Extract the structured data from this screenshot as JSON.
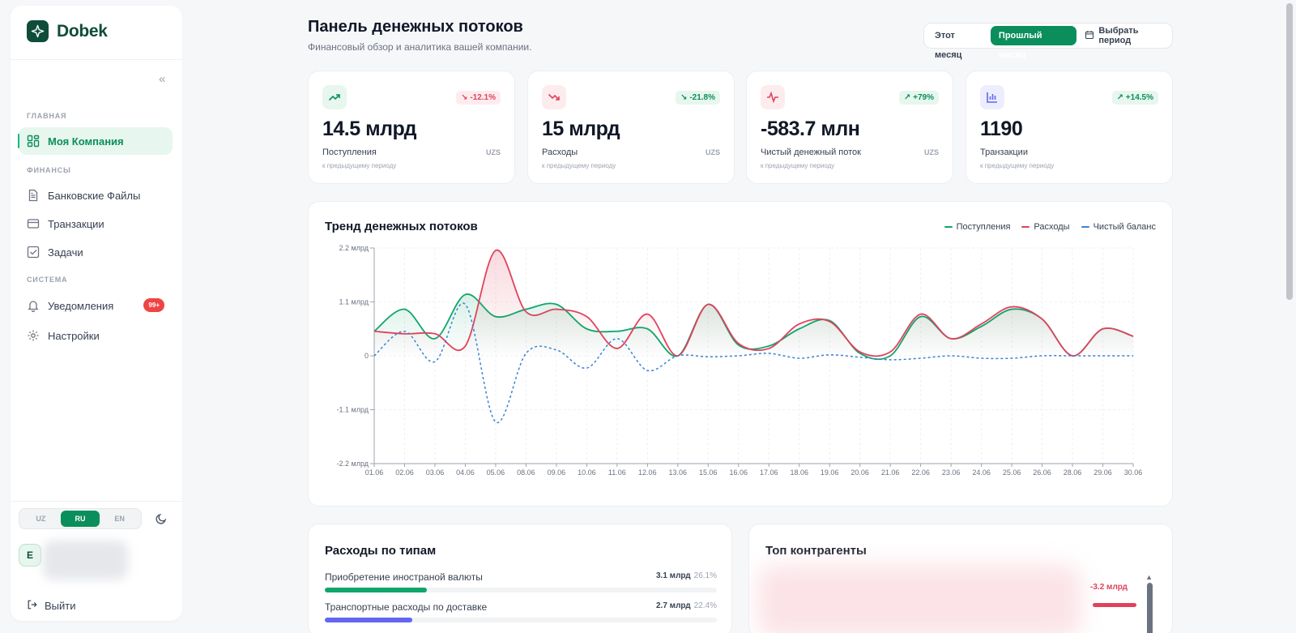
{
  "brand": {
    "name": "Dobek"
  },
  "sidebar": {
    "sections": [
      {
        "label": "ГЛАВНАЯ"
      },
      {
        "label": "ФИНАНСЫ"
      },
      {
        "label": "СИСТЕМА"
      }
    ],
    "items": [
      {
        "label": "Моя Компания",
        "icon": "dashboard-icon",
        "active": true
      },
      {
        "label": "Банковские Файлы",
        "icon": "file-icon"
      },
      {
        "label": "Транзакции",
        "icon": "card-icon"
      },
      {
        "label": "Задачи",
        "icon": "checkbox-icon"
      },
      {
        "label": "Уведомления",
        "icon": "bell-icon",
        "badge": "99+"
      },
      {
        "label": "Настройки",
        "icon": "gear-icon"
      }
    ],
    "languages": [
      "UZ",
      "RU",
      "EN"
    ],
    "active_language": "RU",
    "user_initial": "E",
    "logout_label": "Выйти"
  },
  "header": {
    "title": "Панель денежных потоков",
    "subtitle": "Финансовый обзор и аналитика вашей компании.",
    "periods": [
      "Этот месяц",
      "Прошлый месяц"
    ],
    "active_period": "Прошлый месяц",
    "custom_period_label": "Выбрать период"
  },
  "kpis": [
    {
      "value": "14.5 млрд",
      "label": "Поступления",
      "currency": "UZS",
      "change": "-12.1%",
      "trend": "negative",
      "compare": "к предыдущему периоду",
      "icon": "trending-up-icon"
    },
    {
      "value": "15 млрд",
      "label": "Расходы",
      "currency": "UZS",
      "change": "-21.8%",
      "trend": "positive",
      "compare": "к предыдущему периоду",
      "icon": "trending-down-icon"
    },
    {
      "value": "-583.7 млн",
      "label": "Чистый денежный поток",
      "currency": "UZS",
      "change": "+79%",
      "trend": "positive",
      "compare": "к предыдущему периоду",
      "icon": "pulse-icon"
    },
    {
      "value": "1190",
      "label": "Транзакции",
      "currency": "",
      "change": "+14.5%",
      "trend": "positive",
      "compare": "к предыдущему периоду",
      "icon": "bar-chart-icon"
    }
  ],
  "chart_data": {
    "type": "line",
    "title": "Тренд денежных потоков",
    "x": [
      "01.06",
      "02.06",
      "03.06",
      "04.06",
      "05.06",
      "08.06",
      "09.06",
      "10.06",
      "11.06",
      "12.06",
      "13.06",
      "15.06",
      "16.06",
      "17.06",
      "18.06",
      "19.06",
      "20.06",
      "21.06",
      "22.06",
      "23.06",
      "24.06",
      "25.06",
      "26.06",
      "28.06",
      "29.06",
      "30.06"
    ],
    "ylim": [
      -2.2,
      2.2
    ],
    "y_ticks": [
      "2.2 млрд",
      "1.1 млрд",
      "0",
      "-1.1 млрд",
      "-2.2 млрд"
    ],
    "y_tick_values": [
      2.2,
      1.1,
      0,
      -1.1,
      -2.2
    ],
    "unit": "млрд",
    "grid": true,
    "legend_position": "top-right",
    "series": [
      {
        "name": "Поступления",
        "color": "#10a56b",
        "style": "solid",
        "values": [
          0.5,
          0.95,
          0.35,
          1.25,
          0.8,
          0.95,
          1.05,
          0.55,
          0.5,
          0.55,
          0.0,
          1.05,
          0.22,
          0.2,
          0.55,
          0.72,
          0.05,
          0.0,
          0.8,
          0.35,
          0.6,
          0.95,
          0.75,
          0.0,
          0.55,
          0.4
        ]
      },
      {
        "name": "Расходы",
        "color": "#e0425c",
        "style": "solid",
        "values": [
          0.5,
          0.45,
          0.45,
          0.2,
          2.15,
          0.9,
          0.95,
          0.8,
          0.15,
          0.85,
          0.0,
          1.05,
          0.25,
          0.15,
          0.65,
          0.7,
          0.08,
          0.08,
          0.85,
          0.35,
          0.65,
          1.0,
          0.75,
          0.0,
          0.55,
          0.4
        ]
      },
      {
        "name": "Чистый баланс",
        "color": "#3b82d6",
        "style": "dashed",
        "values": [
          0.0,
          0.5,
          -0.12,
          1.05,
          -1.35,
          0.05,
          0.12,
          -0.25,
          0.35,
          -0.3,
          0.0,
          -0.02,
          0.0,
          0.05,
          -0.05,
          0.02,
          -0.03,
          -0.08,
          -0.05,
          0.0,
          -0.05,
          -0.05,
          0.0,
          0.0,
          0.0,
          0.0
        ]
      }
    ]
  },
  "expenses": {
    "title": "Расходы по типам",
    "items": [
      {
        "name": "Приобретение иностраной валюты",
        "amount": "3.1 млрд",
        "percent": "26.1%",
        "fill": 0.261,
        "color": "#10a56b"
      },
      {
        "name": "Транспортные расходы по доставке",
        "amount": "2.7 млрд",
        "percent": "22.4%",
        "fill": 0.224,
        "color": "#6366f1"
      }
    ]
  },
  "top_partners": {
    "title": "Топ контрагенты",
    "amount": "-3.2 млрд"
  }
}
